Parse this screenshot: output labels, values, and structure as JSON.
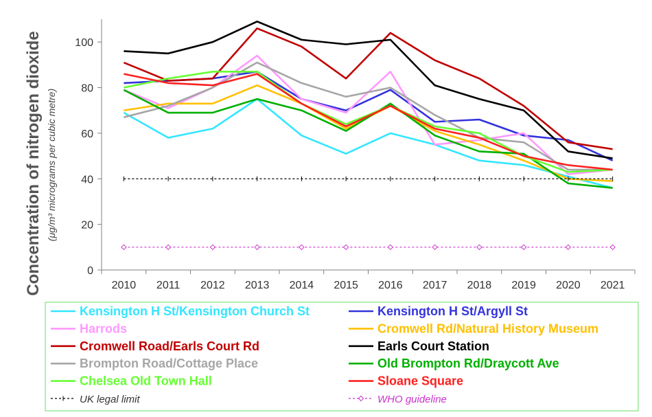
{
  "chart_data": {
    "type": "line",
    "ylabel": "Concentration of nitrogen dioxide",
    "ysublabel": "(μg/m³ micrograms per cubic metre)",
    "xlabel": "",
    "categories": [
      "2010",
      "2011",
      "2012",
      "2013",
      "2014",
      "2015",
      "2016",
      "2017",
      "2018",
      "2019",
      "2020",
      "2021"
    ],
    "ylim": [
      0,
      110
    ],
    "yticks": [
      0,
      20,
      40,
      60,
      80,
      100
    ],
    "grid": false,
    "legend_position": "bottom",
    "series": [
      {
        "name": "Kensington H St/Kensington Church St",
        "color": "#33e6ff",
        "values": [
          69,
          58,
          62,
          75,
          59,
          51,
          60,
          55,
          48,
          46,
          41,
          36
        ]
      },
      {
        "name": "Kensington H St/Argyll St",
        "color": "#3333dd",
        "values": [
          82,
          83,
          84,
          87,
          75,
          70,
          79,
          65,
          66,
          59,
          57,
          48
        ]
      },
      {
        "name": "Harrods",
        "color": "#ff99ff",
        "values": [
          79,
          71,
          80,
          94,
          75,
          69,
          87,
          55,
          57,
          60,
          42,
          44
        ]
      },
      {
        "name": "Cromwell Rd/Natural History Museum",
        "color": "#ffc000",
        "values": [
          70,
          73,
          73,
          81,
          73,
          62,
          72,
          61,
          55,
          48,
          40,
          39
        ]
      },
      {
        "name": "Cromwell Road/Earls Court Rd",
        "color": "#c00000",
        "values": [
          91,
          83,
          84,
          106,
          98,
          84,
          104,
          92,
          84,
          72,
          56,
          53
        ]
      },
      {
        "name": "Earls Court Station",
        "color": "#000000",
        "values": [
          96,
          95,
          100,
          109,
          101,
          99,
          101,
          81,
          75,
          70,
          52,
          49
        ]
      },
      {
        "name": "Brompton Road/Cottage Place",
        "color": "#a6a6a6",
        "values": [
          67,
          72,
          80,
          91,
          82,
          76,
          80,
          68,
          58,
          56,
          44,
          44
        ]
      },
      {
        "name": "Old Brompton Rd/Draycott Ave",
        "color": "#00b000",
        "values": [
          79,
          69,
          69,
          75,
          70,
          61,
          73,
          59,
          52,
          51,
          38,
          36
        ]
      },
      {
        "name": "Chelsea Old Town Hall",
        "color": "#66ff33",
        "values": [
          80,
          84,
          87,
          87,
          73,
          64,
          72,
          63,
          60,
          50,
          43,
          44
        ]
      },
      {
        "name": "Sloane Square",
        "color": "#ff2020",
        "values": [
          86,
          82,
          81,
          86,
          73,
          63,
          72,
          62,
          58,
          50,
          46,
          44
        ]
      },
      {
        "name": "UK legal limit",
        "color": "#000000",
        "dash": true,
        "values": [
          40,
          40,
          40,
          40,
          40,
          40,
          40,
          40,
          40,
          40,
          40,
          40
        ]
      },
      {
        "name": "WHO guideline",
        "color": "#cc33cc",
        "dash": true,
        "values": [
          10,
          10,
          10,
          10,
          10,
          10,
          10,
          10,
          10,
          10,
          10,
          10
        ]
      }
    ]
  }
}
